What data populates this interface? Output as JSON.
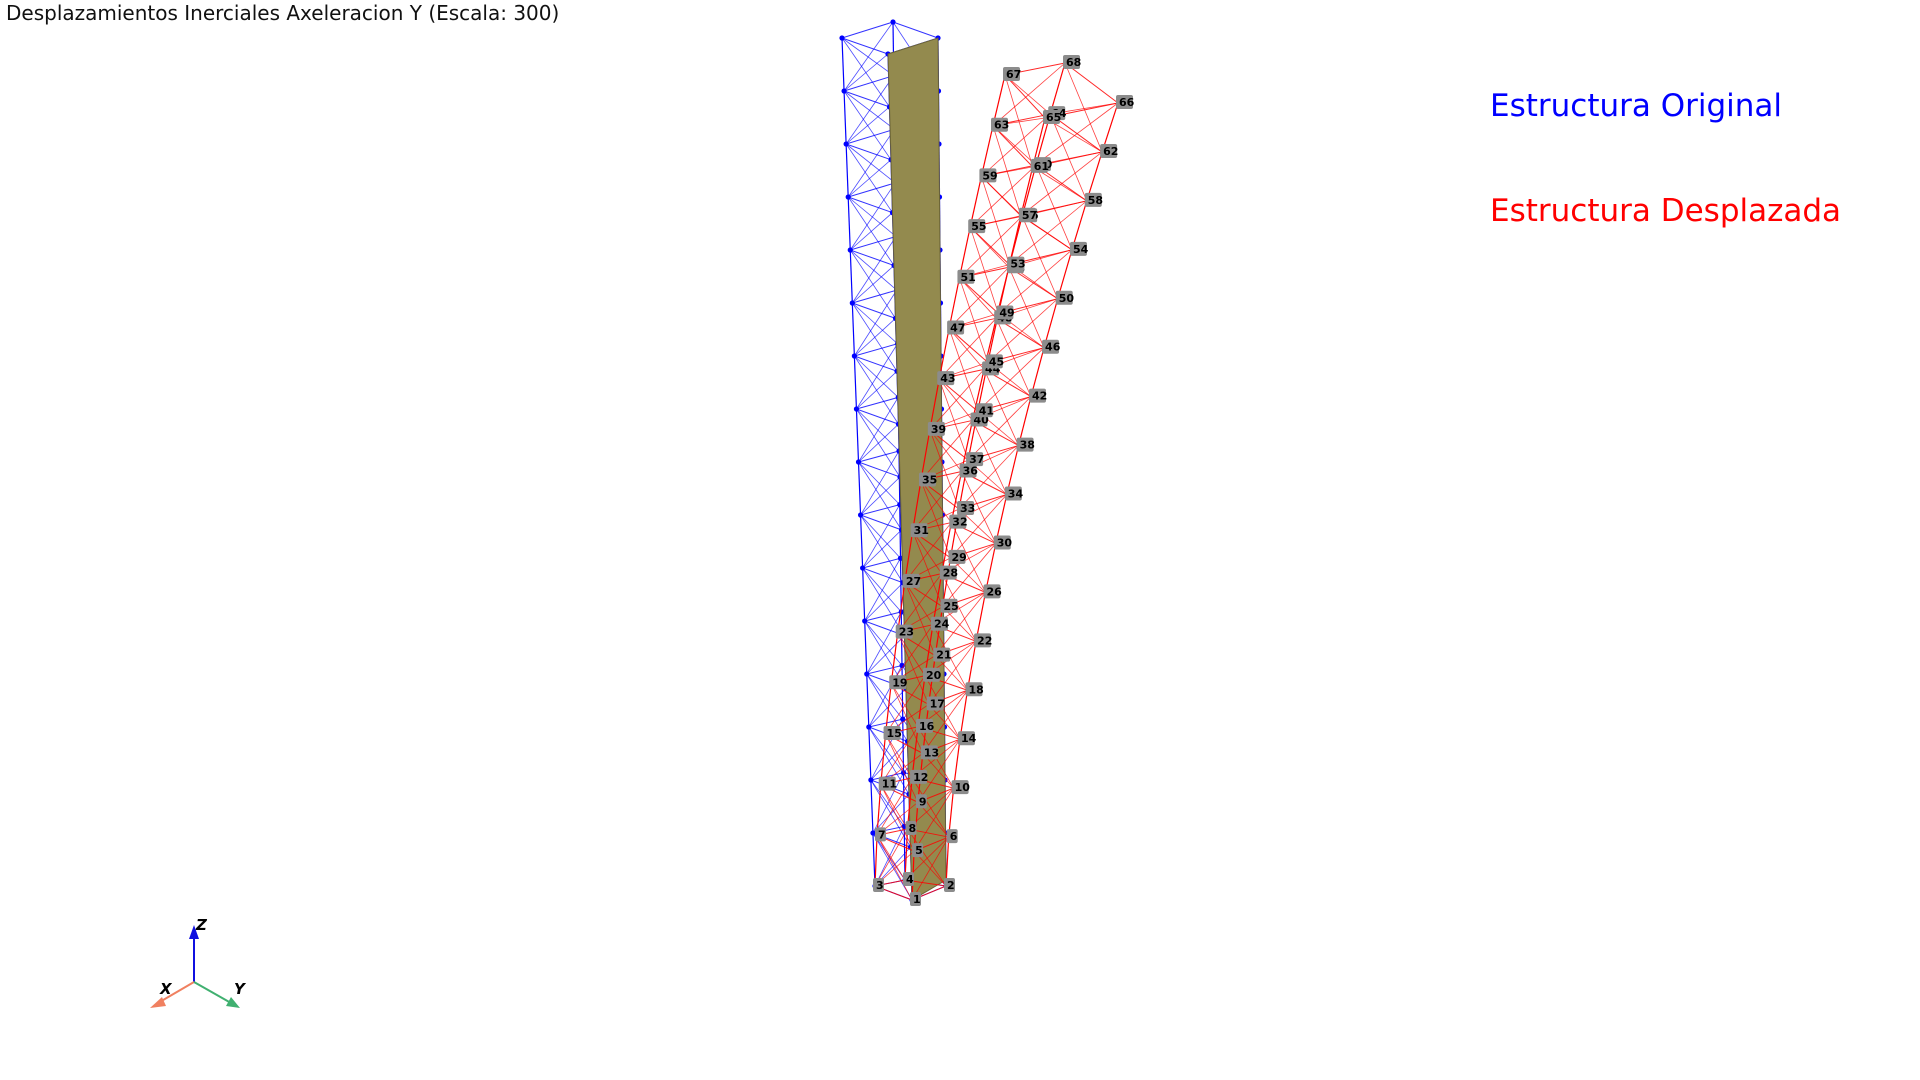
{
  "title": "Desplazamientos Inerciales Axeleracion Y (Escala: 300)",
  "legend": {
    "original": {
      "label": "Estructura Original",
      "color": "#0000ff"
    },
    "displaced": {
      "label": "Estructura Desplazada",
      "color": "#ff0000"
    }
  },
  "colors": {
    "panel": "#938a4e",
    "panel_edge": "#6b6436",
    "node_label_bg": "#8c8c8c",
    "original": "#0000ff",
    "displaced": "#ff0000"
  },
  "axes": {
    "x": "X",
    "y": "Y",
    "z": "Z"
  },
  "node_ids": [
    1,
    2,
    3,
    4,
    5,
    6,
    7,
    8,
    9,
    10,
    11,
    12,
    13,
    14,
    15,
    16,
    17,
    18,
    19,
    20,
    21,
    22,
    23,
    24,
    25,
    26,
    27,
    28,
    29,
    30,
    31,
    32,
    33,
    34,
    35,
    36,
    37,
    38,
    39,
    40,
    41,
    42,
    43,
    44,
    45,
    46,
    47,
    48,
    49,
    50,
    51,
    52,
    53,
    54,
    55,
    56,
    57,
    58,
    59,
    60,
    61,
    62,
    63,
    64,
    65,
    66,
    67,
    68
  ]
}
